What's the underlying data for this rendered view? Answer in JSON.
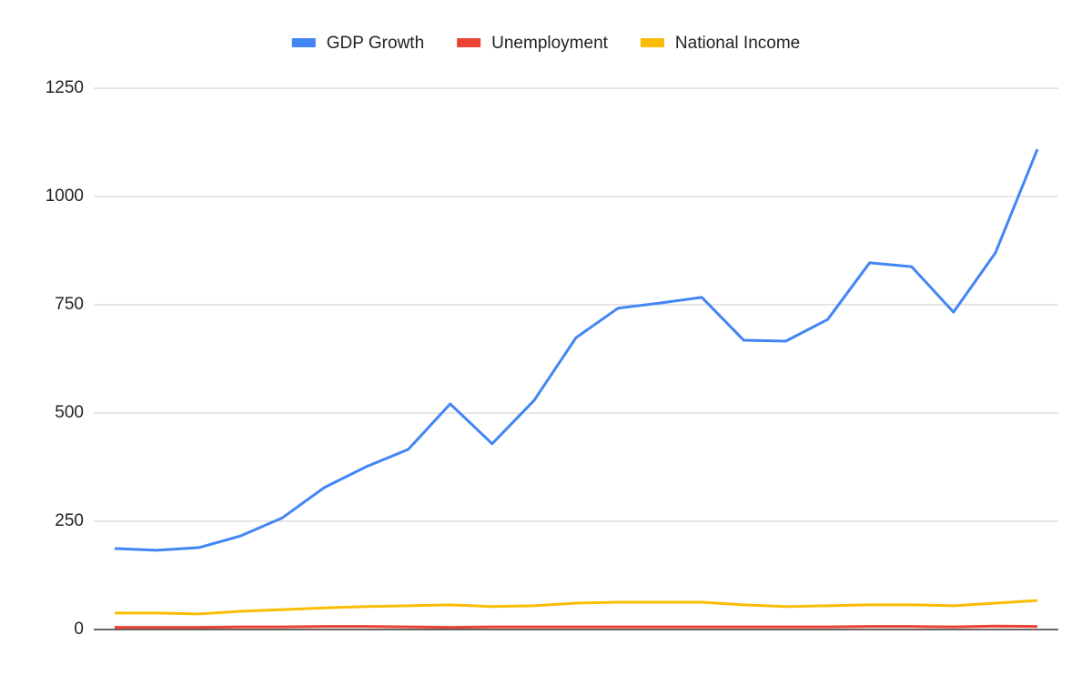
{
  "chart_data": {
    "type": "line",
    "categories": [
      null,
      null,
      null,
      null,
      null,
      null,
      null,
      null,
      null,
      null,
      null,
      null,
      null,
      null,
      null,
      null,
      null,
      null,
      null,
      null,
      null,
      null,
      null
    ],
    "series": [
      {
        "name": "GDP Growth",
        "color": "#4285f4",
        "values": [
          187,
          183,
          189,
          216,
          258,
          328,
          376,
          416,
          521,
          429,
          529,
          674,
          742,
          754,
          767,
          668,
          666,
          716,
          847,
          838,
          733,
          870,
          1109
        ]
      },
      {
        "name": "Unemployment",
        "color": "#ea4335",
        "values": [
          5,
          5,
          5,
          6,
          6,
          7,
          7,
          6,
          5,
          6,
          6,
          6,
          6,
          6,
          6,
          6,
          6,
          6,
          7,
          7,
          6,
          8,
          7
        ]
      },
      {
        "name": "National Income",
        "color": "#fbbc04",
        "values": [
          38,
          38,
          36,
          42,
          46,
          50,
          53,
          55,
          57,
          53,
          55,
          61,
          63,
          63,
          63,
          57,
          53,
          55,
          57,
          57,
          55,
          61,
          67
        ]
      }
    ],
    "ylim": [
      0,
      1250
    ],
    "yticks": [
      0,
      250,
      500,
      750,
      1000,
      1250
    ],
    "grid": true,
    "legend": "top"
  }
}
